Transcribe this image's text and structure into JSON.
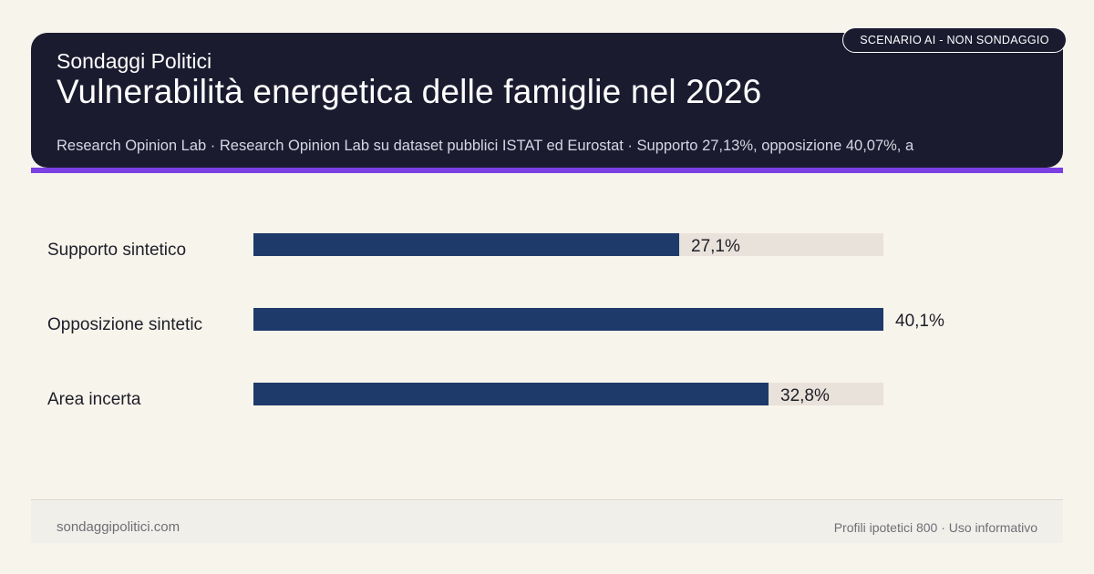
{
  "header": {
    "brand": "Sondaggi Politici",
    "title": "Vulnerabilità energetica delle famiglie nel 2026",
    "subtitle": "Research Opinion Lab · Research Opinion Lab su dataset pubblici ISTAT ed Eurostat · Supporto 27,13%, opposizione 40,07%, a",
    "badge": "SCENARIO AI - NON SONDAGGIO"
  },
  "colors": {
    "header_bg": "#1b1b30",
    "accent": "#7b3fe4",
    "bar": "#1e3a6b",
    "track": "#e8e2da"
  },
  "chart_data": {
    "type": "bar",
    "orientation": "horizontal",
    "categories": [
      "Supporto sintetico",
      "Opposizione sintetic",
      "Area incerta"
    ],
    "values": [
      27.1,
      40.1,
      32.8
    ],
    "value_labels": [
      "27,1%",
      "40,1%",
      "32,8%"
    ],
    "xlim": [
      0,
      40.1
    ],
    "grid": false
  },
  "footer": {
    "site": "sondaggipolitici.com",
    "note": "Profili ipotetici 800 · Uso informativo"
  }
}
